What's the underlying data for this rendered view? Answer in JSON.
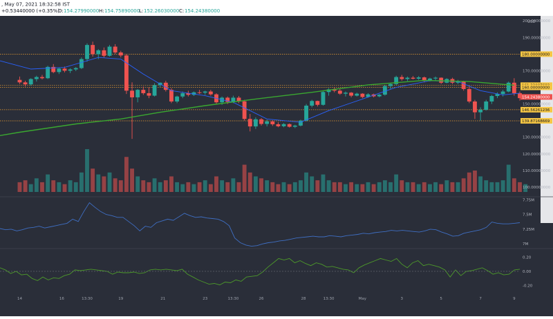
{
  "header": {
    "date_text": ", May 07, 2021 18:32:58 IST",
    "change_text": "+0.53440000 (+0.35%)",
    "o_label": "O:",
    "o_value": "154.27990000",
    "h_label": "H:",
    "h_value": "154.75890000",
    "l_label": "L:",
    "l_value": "152.26030000",
    "c_label": "C:",
    "c_value": "154.24380000"
  },
  "colors": {
    "background": "#2a2e39",
    "up": "#26a69a",
    "down": "#ef5350",
    "sma_long": "#3aa830",
    "sma_short": "#2962ff",
    "level_line": "#f0a030",
    "label_yellow": "#f7c744",
    "last_price": "#ef5350",
    "indicator_1": "#3f6fc4",
    "indicator_2": "#4d9a2a"
  },
  "chart_data": [
    {
      "type": "candlestick",
      "currency_label": "USD",
      "price_axis_ticks": [
        "200.00000000",
        "190.00000000",
        "170.00000000",
        "150.00000000",
        "130.00000000",
        "120.00000000",
        "110.00000000",
        "100.00000000"
      ],
      "price_axis_tick_values": [
        200,
        190,
        170,
        150,
        130,
        120,
        110,
        100
      ],
      "ylim": [
        95,
        203
      ],
      "levels": [
        {
          "value": 180,
          "label": "180.00000000"
        },
        {
          "value": 161.33087682,
          "label": "161.33087682"
        },
        {
          "value": 160,
          "label": "160.00000000"
        },
        {
          "value": 146.56261236,
          "label": "146.56261236"
        },
        {
          "value": 139.87168669,
          "label": "139.87168669"
        }
      ],
      "last_price": {
        "value": 154.2438,
        "label": "154.24380000"
      },
      "x_ticks": [
        "14",
        "16",
        "13:30",
        "19",
        "21",
        "23",
        "13:30",
        "26",
        "28",
        "13:30",
        "May",
        "3",
        "5",
        "7",
        "9"
      ],
      "x_tick_positions": [
        0,
        7.5,
        12,
        18,
        25.5,
        33,
        38,
        43,
        50.5,
        55,
        61,
        68,
        75,
        82,
        88
      ],
      "x_range": [
        -3.5,
        89
      ],
      "candles": [
        {
          "o": 164.5,
          "h": 166.5,
          "l": 162.0,
          "c": 163.0
        },
        {
          "o": 163.0,
          "h": 164.0,
          "l": 160.5,
          "c": 161.8
        },
        {
          "o": 161.8,
          "h": 165.5,
          "l": 161.0,
          "c": 165.0
        },
        {
          "o": 165.0,
          "h": 167.0,
          "l": 163.5,
          "c": 166.2
        },
        {
          "o": 166.2,
          "h": 167.5,
          "l": 164.8,
          "c": 165.5
        },
        {
          "o": 165.5,
          "h": 173.0,
          "l": 165.0,
          "c": 172.3
        },
        {
          "o": 172.3,
          "h": 174.0,
          "l": 168.5,
          "c": 169.2
        },
        {
          "o": 169.2,
          "h": 172.0,
          "l": 168.0,
          "c": 171.3
        },
        {
          "o": 171.3,
          "h": 172.5,
          "l": 169.0,
          "c": 170.0
        },
        {
          "o": 170.0,
          "h": 171.5,
          "l": 168.6,
          "c": 170.8
        },
        {
          "o": 170.8,
          "h": 172.2,
          "l": 169.8,
          "c": 171.6
        },
        {
          "o": 171.6,
          "h": 178.0,
          "l": 171.0,
          "c": 177.0
        },
        {
          "o": 177.0,
          "h": 186.5,
          "l": 175.5,
          "c": 185.5
        },
        {
          "o": 185.5,
          "h": 187.5,
          "l": 178.5,
          "c": 180.0
        },
        {
          "o": 180.0,
          "h": 183.0,
          "l": 177.0,
          "c": 182.3
        },
        {
          "o": 182.3,
          "h": 184.0,
          "l": 178.0,
          "c": 179.0
        },
        {
          "o": 179.0,
          "h": 185.5,
          "l": 178.5,
          "c": 184.5
        },
        {
          "o": 184.5,
          "h": 186.0,
          "l": 180.0,
          "c": 181.0
        },
        {
          "o": 181.0,
          "h": 182.0,
          "l": 178.0,
          "c": 179.2
        },
        {
          "o": 179.2,
          "h": 180.0,
          "l": 156.0,
          "c": 158.0
        },
        {
          "o": 158.0,
          "h": 163.0,
          "l": 129.0,
          "c": 154.0
        },
        {
          "o": 154.0,
          "h": 159.0,
          "l": 151.0,
          "c": 158.5
        },
        {
          "o": 158.5,
          "h": 160.5,
          "l": 155.5,
          "c": 156.5
        },
        {
          "o": 156.5,
          "h": 160.0,
          "l": 153.5,
          "c": 155.0
        },
        {
          "o": 155.0,
          "h": 162.5,
          "l": 154.5,
          "c": 161.3
        },
        {
          "o": 161.3,
          "h": 163.0,
          "l": 160.0,
          "c": 162.8
        },
        {
          "o": 162.8,
          "h": 164.0,
          "l": 157.5,
          "c": 158.5
        },
        {
          "o": 158.5,
          "h": 159.5,
          "l": 150.5,
          "c": 151.5
        },
        {
          "o": 151.5,
          "h": 155.0,
          "l": 150.5,
          "c": 154.5
        },
        {
          "o": 154.5,
          "h": 157.5,
          "l": 153.5,
          "c": 156.5
        },
        {
          "o": 156.5,
          "h": 158.0,
          "l": 154.5,
          "c": 155.5
        },
        {
          "o": 155.5,
          "h": 157.5,
          "l": 154.8,
          "c": 157.0
        },
        {
          "o": 157.0,
          "h": 158.5,
          "l": 156.0,
          "c": 156.8
        },
        {
          "o": 156.8,
          "h": 158.0,
          "l": 155.5,
          "c": 157.5
        },
        {
          "o": 157.5,
          "h": 158.5,
          "l": 155.0,
          "c": 155.8
        },
        {
          "o": 155.8,
          "h": 156.5,
          "l": 150.0,
          "c": 151.0
        },
        {
          "o": 151.0,
          "h": 154.5,
          "l": 149.5,
          "c": 153.8
        },
        {
          "o": 153.8,
          "h": 154.5,
          "l": 150.0,
          "c": 151.2
        },
        {
          "o": 151.2,
          "h": 155.0,
          "l": 150.5,
          "c": 153.8
        },
        {
          "o": 153.8,
          "h": 154.8,
          "l": 150.5,
          "c": 151.6
        },
        {
          "o": 151.6,
          "h": 152.5,
          "l": 140.0,
          "c": 141.0
        },
        {
          "o": 141.0,
          "h": 144.0,
          "l": 133.5,
          "c": 136.5
        },
        {
          "o": 136.5,
          "h": 142.0,
          "l": 135.0,
          "c": 140.8
        },
        {
          "o": 140.8,
          "h": 141.5,
          "l": 137.0,
          "c": 138.0
        },
        {
          "o": 138.0,
          "h": 140.5,
          "l": 136.5,
          "c": 139.5
        },
        {
          "o": 139.5,
          "h": 140.2,
          "l": 136.8,
          "c": 137.8
        },
        {
          "o": 137.8,
          "h": 139.0,
          "l": 136.0,
          "c": 136.6
        },
        {
          "o": 136.6,
          "h": 138.5,
          "l": 136.0,
          "c": 137.9
        },
        {
          "o": 137.9,
          "h": 138.3,
          "l": 135.8,
          "c": 136.3
        },
        {
          "o": 136.3,
          "h": 137.5,
          "l": 135.5,
          "c": 137.0
        },
        {
          "o": 137.0,
          "h": 140.5,
          "l": 136.5,
          "c": 140.0
        },
        {
          "o": 140.0,
          "h": 150.0,
          "l": 139.5,
          "c": 149.0
        },
        {
          "o": 149.0,
          "h": 152.5,
          "l": 148.0,
          "c": 151.8
        },
        {
          "o": 151.8,
          "h": 152.0,
          "l": 148.5,
          "c": 149.5
        },
        {
          "o": 149.5,
          "h": 158.0,
          "l": 149.0,
          "c": 157.2
        },
        {
          "o": 157.2,
          "h": 159.5,
          "l": 155.0,
          "c": 158.8
        },
        {
          "o": 158.8,
          "h": 160.0,
          "l": 157.0,
          "c": 158.0
        },
        {
          "o": 158.0,
          "h": 159.0,
          "l": 155.5,
          "c": 156.2
        },
        {
          "o": 156.2,
          "h": 157.5,
          "l": 154.5,
          "c": 156.8
        },
        {
          "o": 156.8,
          "h": 157.2,
          "l": 154.0,
          "c": 155.0
        },
        {
          "o": 155.0,
          "h": 156.8,
          "l": 154.5,
          "c": 156.2
        },
        {
          "o": 156.2,
          "h": 156.5,
          "l": 153.5,
          "c": 154.2
        },
        {
          "o": 154.2,
          "h": 156.5,
          "l": 153.8,
          "c": 155.8
        },
        {
          "o": 155.8,
          "h": 156.2,
          "l": 154.0,
          "c": 154.6
        },
        {
          "o": 154.6,
          "h": 156.0,
          "l": 154.0,
          "c": 155.6
        },
        {
          "o": 155.6,
          "h": 161.5,
          "l": 155.0,
          "c": 160.8
        },
        {
          "o": 160.8,
          "h": 162.5,
          "l": 159.0,
          "c": 162.0
        },
        {
          "o": 162.0,
          "h": 167.0,
          "l": 161.5,
          "c": 166.2
        },
        {
          "o": 166.2,
          "h": 167.5,
          "l": 164.0,
          "c": 165.0
        },
        {
          "o": 165.0,
          "h": 166.5,
          "l": 163.8,
          "c": 165.8
        },
        {
          "o": 165.8,
          "h": 166.8,
          "l": 164.8,
          "c": 165.2
        },
        {
          "o": 165.2,
          "h": 166.8,
          "l": 164.5,
          "c": 166.0
        },
        {
          "o": 166.0,
          "h": 166.5,
          "l": 163.0,
          "c": 164.0
        },
        {
          "o": 164.0,
          "h": 165.8,
          "l": 163.5,
          "c": 165.3
        },
        {
          "o": 165.3,
          "h": 166.5,
          "l": 164.0,
          "c": 165.8
        },
        {
          "o": 165.8,
          "h": 166.0,
          "l": 162.0,
          "c": 162.8
        },
        {
          "o": 162.8,
          "h": 165.5,
          "l": 162.5,
          "c": 165.0
        },
        {
          "o": 165.0,
          "h": 165.8,
          "l": 162.0,
          "c": 162.8
        },
        {
          "o": 162.8,
          "h": 164.5,
          "l": 162.0,
          "c": 163.6
        },
        {
          "o": 163.6,
          "h": 164.0,
          "l": 158.0,
          "c": 159.0
        },
        {
          "o": 159.0,
          "h": 160.5,
          "l": 150.5,
          "c": 151.5
        },
        {
          "o": 151.5,
          "h": 152.5,
          "l": 141.0,
          "c": 145.0
        },
        {
          "o": 145.0,
          "h": 148.0,
          "l": 140.0,
          "c": 146.5
        },
        {
          "o": 146.5,
          "h": 152.5,
          "l": 146.0,
          "c": 151.5
        },
        {
          "o": 151.5,
          "h": 155.5,
          "l": 150.0,
          "c": 154.8
        },
        {
          "o": 154.8,
          "h": 157.0,
          "l": 153.5,
          "c": 156.0
        },
        {
          "o": 156.0,
          "h": 158.5,
          "l": 154.5,
          "c": 157.5
        },
        {
          "o": 157.5,
          "h": 163.5,
          "l": 157.0,
          "c": 162.8
        },
        {
          "o": 162.8,
          "h": 165.5,
          "l": 155.0,
          "c": 156.5
        },
        {
          "o": 156.5,
          "h": 157.5,
          "l": 152.0,
          "c": 153.5
        },
        {
          "o": 153.5,
          "h": 155.5,
          "l": 152.5,
          "c": 154.2
        }
      ],
      "volume": [
        5,
        6,
        4,
        7,
        5,
        9,
        6,
        5,
        4,
        6,
        5,
        10,
        22,
        12,
        9,
        8,
        10,
        7,
        6,
        18,
        12,
        8,
        6,
        5,
        7,
        5,
        6,
        8,
        5,
        4,
        5,
        4,
        5,
        6,
        4,
        8,
        6,
        5,
        7,
        5,
        14,
        10,
        8,
        7,
        6,
        5,
        4,
        5,
        4,
        5,
        6,
        10,
        8,
        6,
        9,
        6,
        5,
        5,
        4,
        5,
        4,
        4,
        5,
        4,
        5,
        6,
        5,
        9,
        6,
        5,
        5,
        4,
        5,
        4,
        5,
        4,
        6,
        5,
        5,
        7,
        10,
        11,
        8,
        6,
        5,
        5,
        6,
        14,
        7,
        5,
        4
      ],
      "sma_long": [
        {
          "i": -3.5,
          "v": 131
        },
        {
          "i": 0,
          "v": 133
        },
        {
          "i": 10,
          "v": 138
        },
        {
          "i": 18,
          "v": 141
        },
        {
          "i": 25,
          "v": 145
        },
        {
          "i": 33,
          "v": 149
        },
        {
          "i": 42,
          "v": 153
        },
        {
          "i": 52,
          "v": 157
        },
        {
          "i": 62,
          "v": 161.5
        },
        {
          "i": 72,
          "v": 164.2
        },
        {
          "i": 80,
          "v": 163.5
        },
        {
          "i": 88,
          "v": 161.3
        }
      ],
      "sma_short": [
        {
          "i": -3.5,
          "v": 176
        },
        {
          "i": 2,
          "v": 171
        },
        {
          "i": 8,
          "v": 172
        },
        {
          "i": 14,
          "v": 178
        },
        {
          "i": 18,
          "v": 177
        },
        {
          "i": 22,
          "v": 168
        },
        {
          "i": 27,
          "v": 158
        },
        {
          "i": 33,
          "v": 155
        },
        {
          "i": 38,
          "v": 151
        },
        {
          "i": 44,
          "v": 141
        },
        {
          "i": 50,
          "v": 139
        },
        {
          "i": 55,
          "v": 146
        },
        {
          "i": 61,
          "v": 153
        },
        {
          "i": 67,
          "v": 160
        },
        {
          "i": 73,
          "v": 164
        },
        {
          "i": 78,
          "v": 163.5
        },
        {
          "i": 82,
          "v": 158
        },
        {
          "i": 86,
          "v": 155.5
        },
        {
          "i": 89,
          "v": 156.5
        }
      ]
    },
    {
      "type": "line",
      "name": "indicator-1",
      "ticks": [
        "7.75M",
        "7.5M",
        "7.25M",
        "7M"
      ],
      "tick_values": [
        7.75,
        7.5,
        7.25,
        7.0
      ],
      "ylim": [
        6.92,
        7.8
      ],
      "values": [
        7.26,
        7.24,
        7.25,
        7.22,
        7.24,
        7.27,
        7.28,
        7.3,
        7.27,
        7.29,
        7.31,
        7.33,
        7.35,
        7.42,
        7.38,
        7.55,
        7.7,
        7.62,
        7.55,
        7.5,
        7.48,
        7.45,
        7.45,
        7.38,
        7.31,
        7.22,
        7.3,
        7.28,
        7.36,
        7.39,
        7.42,
        7.4,
        7.46,
        7.52,
        7.48,
        7.45,
        7.46,
        7.44,
        7.43,
        7.42,
        7.38,
        7.31,
        7.1,
        7.02,
        6.98,
        6.96,
        6.97,
        7.0,
        7.02,
        7.03,
        7.05,
        7.06,
        7.08,
        7.1,
        7.11,
        7.12,
        7.13,
        7.12,
        7.12,
        7.14,
        7.13,
        7.12,
        7.14,
        7.15,
        7.16,
        7.18,
        7.17,
        7.19,
        7.2,
        7.21,
        7.23,
        7.22,
        7.23,
        7.22,
        7.21,
        7.2,
        7.22,
        7.25,
        7.24,
        7.2,
        7.17,
        7.13,
        7.14,
        7.18,
        7.2,
        7.22,
        7.24,
        7.28,
        7.37,
        7.35,
        7.34,
        7.34,
        7.35,
        7.36
      ]
    },
    {
      "type": "line",
      "name": "indicator-2",
      "ticks": [
        "0.20",
        "0.00",
        "-0.20"
      ],
      "tick_values": [
        0.2,
        0.0,
        -0.2
      ],
      "ylim": [
        -0.31,
        0.3
      ],
      "values": [
        0.05,
        0.02,
        -0.03,
        0.0,
        -0.05,
        -0.04,
        -0.1,
        -0.13,
        -0.08,
        -0.12,
        -0.09,
        -0.1,
        -0.06,
        -0.04,
        0.02,
        0.01,
        0.02,
        0.03,
        0.02,
        0.01,
        0.0,
        -0.04,
        -0.01,
        -0.02,
        -0.02,
        -0.01,
        -0.03,
        -0.02,
        0.02,
        0.03,
        0.02,
        0.03,
        0.02,
        0.01,
        0.03,
        -0.04,
        -0.08,
        -0.12,
        -0.15,
        -0.18,
        -0.17,
        -0.19,
        -0.15,
        -0.16,
        -0.12,
        -0.14,
        -0.08,
        -0.07,
        -0.06,
        -0.01,
        0.06,
        0.12,
        0.18,
        0.16,
        0.18,
        0.12,
        0.15,
        0.11,
        0.08,
        0.12,
        0.1,
        0.06,
        0.07,
        0.05,
        0.03,
        0.02,
        -0.02,
        0.05,
        0.09,
        0.12,
        0.15,
        0.18,
        0.16,
        0.14,
        0.18,
        0.1,
        0.05,
        0.12,
        0.15,
        0.08,
        0.1,
        0.08,
        0.06,
        0.02,
        -0.08,
        0.02,
        -0.06,
        0.0,
        0.01,
        0.03,
        0.05,
        0.01,
        -0.04,
        -0.02,
        -0.05,
        -0.04,
        0.02,
        0.03
      ]
    }
  ]
}
